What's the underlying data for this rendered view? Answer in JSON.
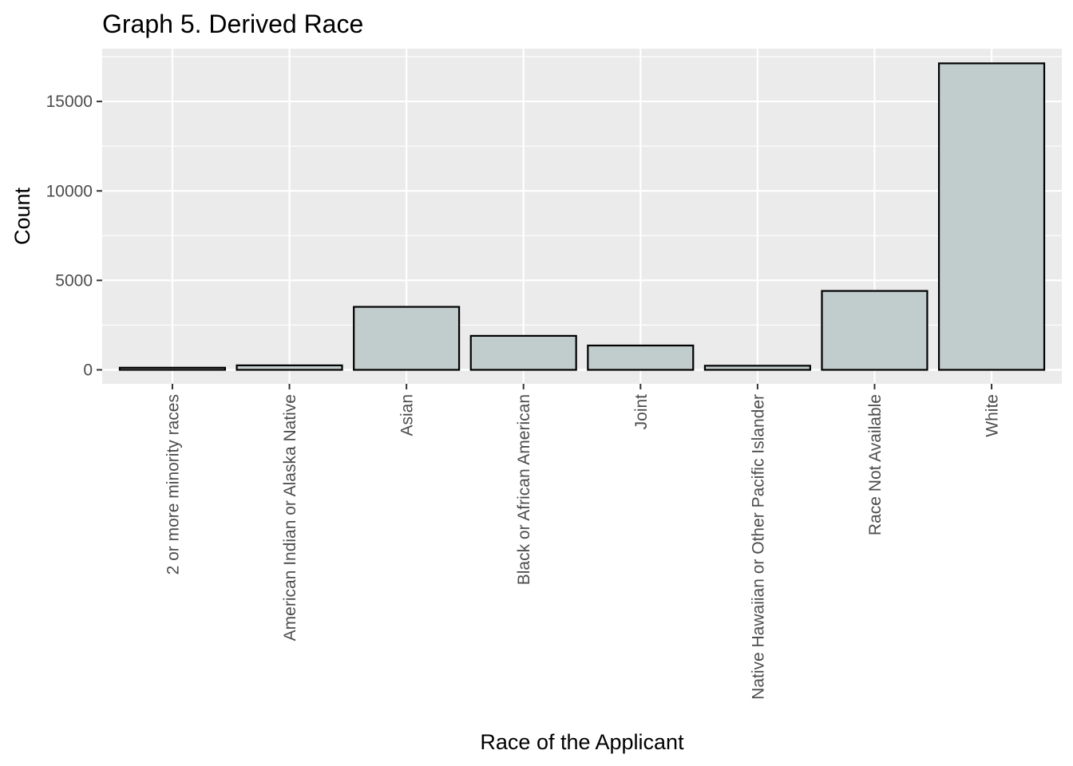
{
  "chart_data": {
    "type": "bar",
    "title": "Graph 5. Derived Race",
    "xlabel": "Race of the Applicant",
    "ylabel": "Count",
    "categories": [
      "2 or more minority races",
      "American Indian or Alaska Native",
      "Asian",
      "Black or African American",
      "Joint",
      "Native Hawaiian or Other Pacific Islander",
      "Race Not Available",
      "White"
    ],
    "values": [
      120,
      250,
      3520,
      1900,
      1360,
      230,
      4410,
      17130
    ],
    "ylim": [
      -780,
      17950
    ],
    "y_ticks": [
      "0",
      "5000",
      "10000",
      "15000"
    ],
    "y_tick_values": [
      0,
      5000,
      10000,
      15000
    ],
    "grid": true,
    "legend": "none",
    "colors": {
      "panel_background": "#ebebeb",
      "grid": "#ffffff",
      "bar_fill": "#c1cccc",
      "bar_stroke": "#000000",
      "tick_text": "#4d4d4d",
      "tick_mark": "#333333"
    }
  }
}
